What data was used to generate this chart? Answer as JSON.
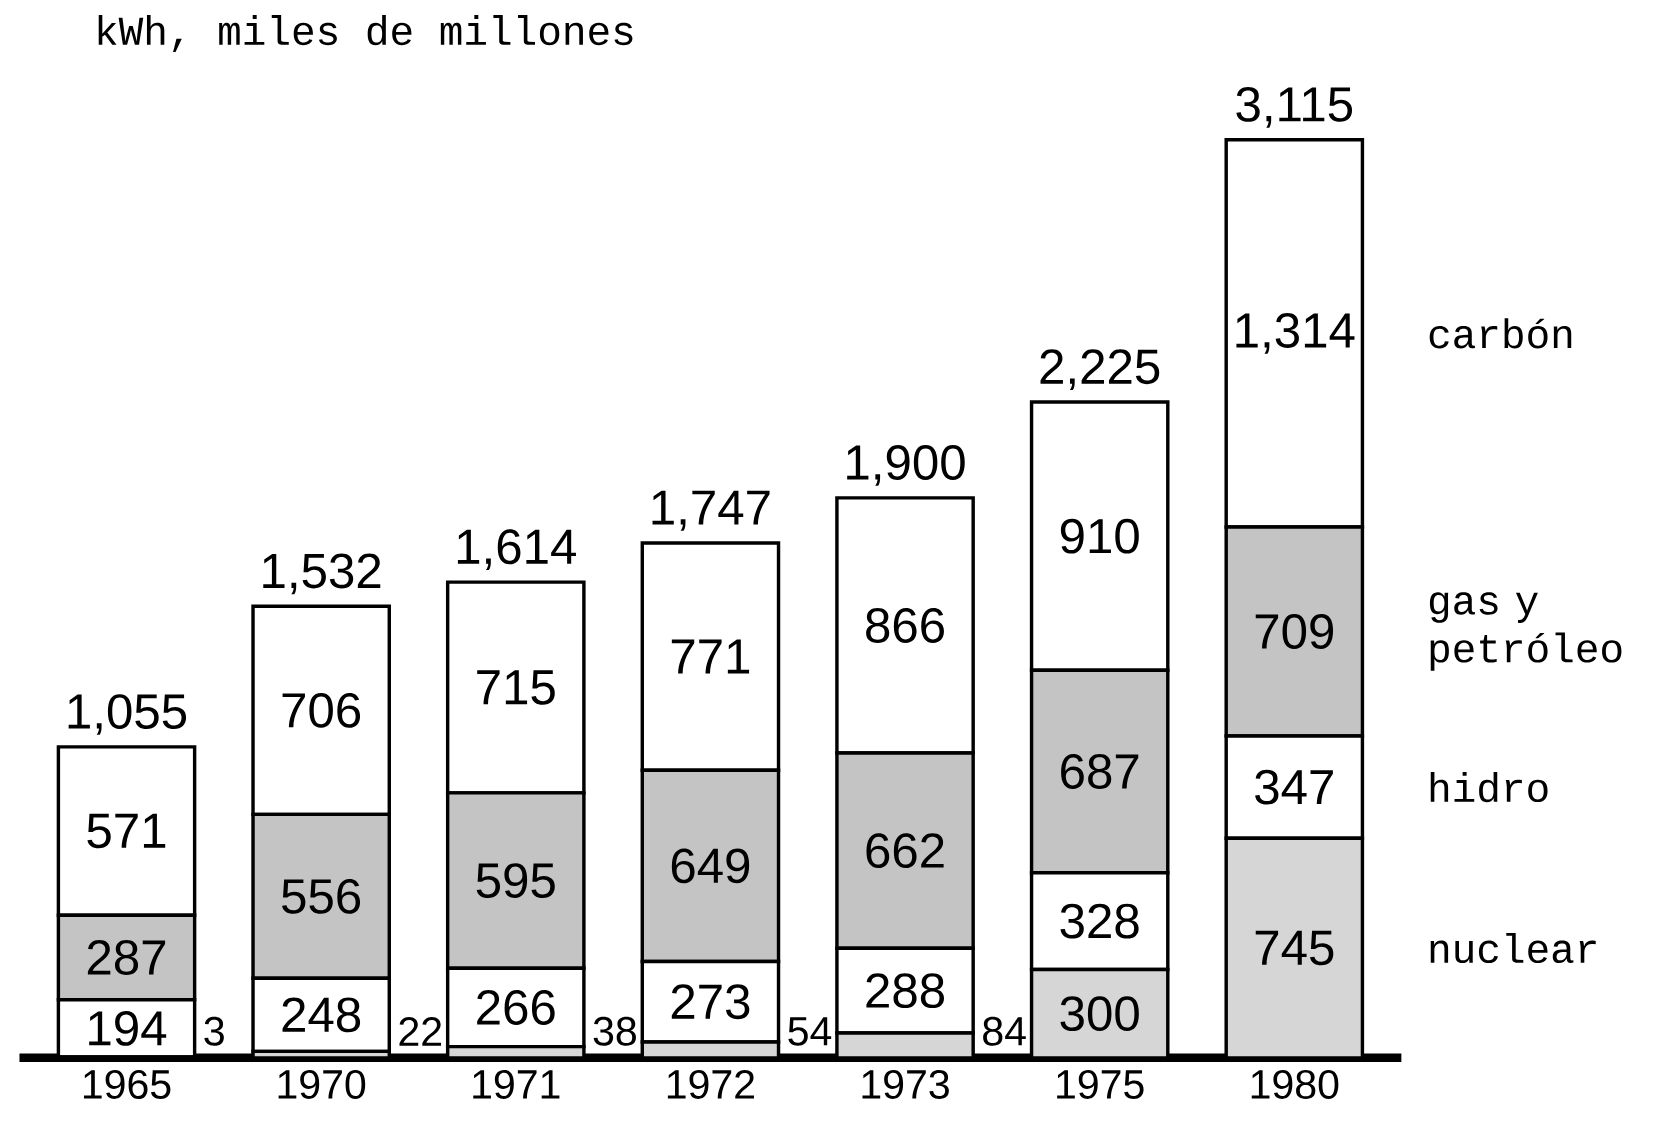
{
  "chart_data": {
    "type": "bar",
    "stacked": true,
    "title": "kWh, miles de millones",
    "categories": [
      "1965",
      "1970",
      "1971",
      "1972",
      "1973",
      "1975",
      "1980"
    ],
    "series": [
      {
        "name": "nuclear",
        "color": "#d6d6d6",
        "values": [
          3,
          22,
          38,
          54,
          84,
          300,
          745
        ]
      },
      {
        "name": "hidro",
        "color": "#ffffff",
        "values": [
          194,
          248,
          266,
          273,
          288,
          328,
          347
        ]
      },
      {
        "name": "gas y petróleo",
        "color": "#c4c4c4",
        "values": [
          287,
          556,
          595,
          649,
          662,
          687,
          709
        ]
      },
      {
        "name": "carbón",
        "color": "#ffffff",
        "values": [
          571,
          706,
          715,
          771,
          866,
          910,
          1314
        ],
        "value_labels": [
          "571",
          "706",
          "715",
          "771",
          "866",
          "910",
          "1,314"
        ]
      }
    ],
    "data_labels": true,
    "totals": [
      "1,055",
      "1,532",
      "1,614",
      "1,747",
      "1,900",
      "2,225",
      "3,115"
    ]
  }
}
